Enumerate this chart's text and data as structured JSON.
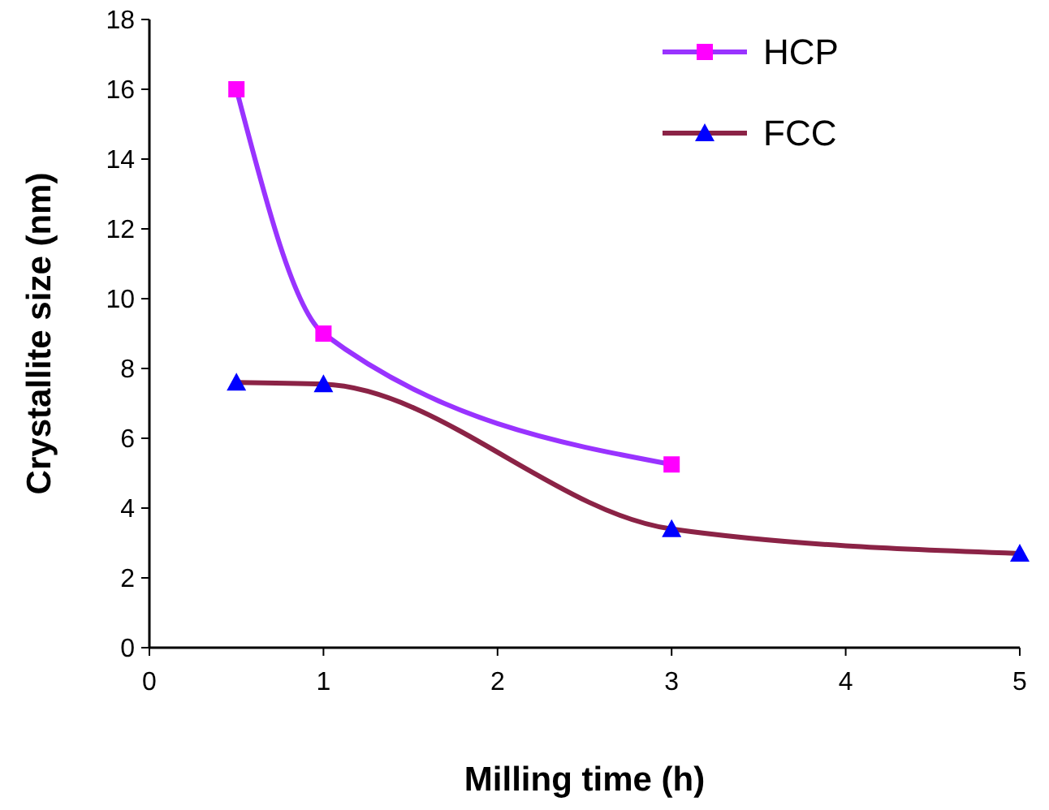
{
  "chart_data": {
    "type": "line",
    "xlabel": "Milling time (h)",
    "ylabel": "Crystallite size (nm)",
    "xlim": [
      0,
      5
    ],
    "xticks": [
      0,
      1,
      2,
      3,
      4,
      5
    ],
    "ylim": [
      0,
      18
    ],
    "yticks": [
      0,
      2,
      4,
      6,
      8,
      10,
      12,
      14,
      16,
      18
    ],
    "grid": false,
    "legend": "top right",
    "line_style": "solid",
    "series": [
      {
        "name": "HCP",
        "color": "#9933ff",
        "colors": [
          "#ff00ff",
          "#ff00ff",
          "#ff00ff"
        ],
        "marker": "square",
        "x": [
          0.5,
          1,
          3
        ],
        "values": [
          16,
          9,
          5.25
        ]
      },
      {
        "name": "FCC",
        "color": "#8b2346",
        "colors": [
          "#0000ff",
          "#0000ff",
          "#0000ff",
          "#0000ff"
        ],
        "marker": "triangle",
        "x": [
          0.5,
          1,
          3,
          5
        ],
        "values": [
          7.6,
          7.55,
          3.4,
          2.7
        ]
      }
    ]
  }
}
